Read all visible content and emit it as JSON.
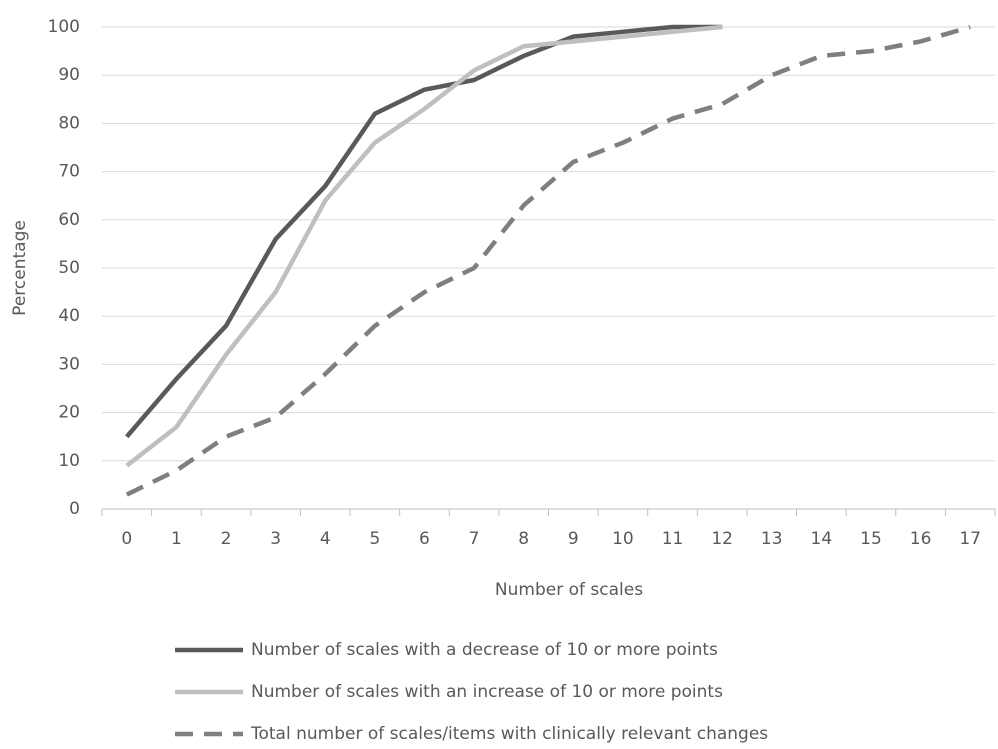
{
  "chart_data": {
    "type": "line",
    "x_label": "Number of scales",
    "y_label": "Percentage",
    "categories": [
      "0",
      "1",
      "2",
      "3",
      "4",
      "5",
      "6",
      "7",
      "8",
      "9",
      "10",
      "11",
      "12",
      "13",
      "14",
      "15",
      "16",
      "17"
    ],
    "series": [
      {
        "name": "Number of scales with a decrease of 10 or more points",
        "color": "#595959",
        "dash": false,
        "values": [
          15,
          27,
          38,
          56,
          67,
          82,
          87,
          89,
          94,
          98,
          99,
          100,
          100,
          null,
          null,
          null,
          null,
          null
        ]
      },
      {
        "name": "Number of scales with an increase of 10 or more points",
        "color": "#bfbfbf",
        "dash": false,
        "values": [
          9,
          17,
          32,
          45,
          64,
          76,
          83,
          91,
          96,
          97,
          98,
          99,
          100,
          null,
          null,
          null,
          null,
          null
        ]
      },
      {
        "name": "Total number of scales/items with clinically relevant changes",
        "color": "#7f7f7f",
        "dash": true,
        "values": [
          3,
          8,
          15,
          19,
          28,
          38,
          45,
          50,
          63,
          72,
          76,
          81,
          84,
          90,
          94,
          95,
          97,
          100
        ]
      }
    ],
    "ylim": [
      0,
      100
    ],
    "yticks": [
      0,
      10,
      20,
      30,
      40,
      50,
      60,
      70,
      80,
      90,
      100
    ],
    "grid": true,
    "legend": "bottom"
  }
}
